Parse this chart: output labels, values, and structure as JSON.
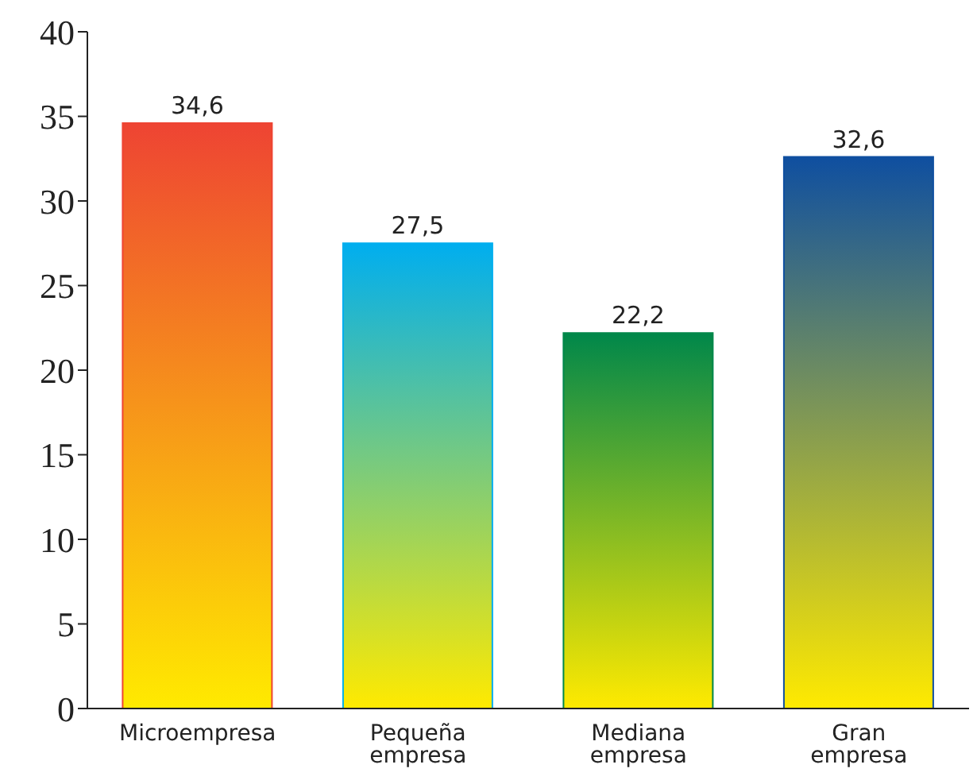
{
  "chart_data": {
    "type": "bar",
    "categories": [
      "Microempresa",
      "Pequeña empresa",
      "Mediana empresa",
      "Gran empresa"
    ],
    "values": [
      34.6,
      27.5,
      22.2,
      32.6
    ],
    "value_labels": [
      "34,6",
      "27,5",
      "22,2",
      "32,6"
    ],
    "colors": [
      "#ee4433",
      "#00aeef",
      "#00874a",
      "#0f4fa0"
    ],
    "ylim": [
      0,
      40
    ],
    "yticks": [
      0,
      5,
      10,
      15,
      20,
      25,
      30,
      35,
      40
    ]
  }
}
